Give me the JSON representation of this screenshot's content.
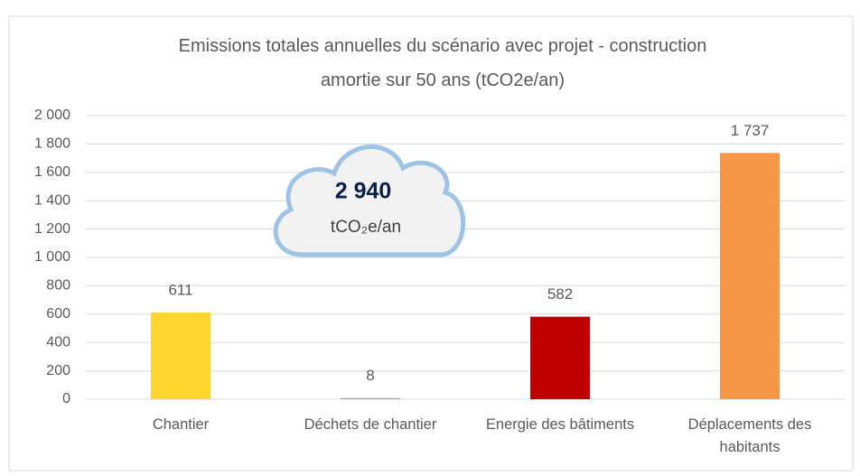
{
  "chart_data": {
    "type": "bar",
    "title": "Emissions totales annuelles du scénario avec projet - construction amortie sur 50 ans (tCO2e/an)",
    "categories": [
      "Chantier",
      "Déchets de chantier",
      "Energie des bâtiments",
      "Déplacements des habitants"
    ],
    "values": [
      611,
      8,
      582,
      1737
    ],
    "value_labels": [
      "611",
      "8",
      "582",
      "1 737"
    ],
    "colors": [
      "#FFD62F",
      "#A5A5A5",
      "#C00000",
      "#F79646"
    ],
    "ylim": [
      0,
      2000
    ],
    "yticks": [
      0,
      200,
      400,
      600,
      800,
      {
        "value": 1000,
        "label": "1 000"
      },
      {
        "value": 1200,
        "label": "1 200"
      },
      {
        "value": 1400,
        "label": "1 400"
      },
      {
        "value": 1600,
        "label": "1 600"
      },
      {
        "value": 1800,
        "label": "1 800"
      },
      {
        "value": 2000,
        "label": "2 000"
      }
    ],
    "grid": true,
    "annotation": {
      "total": "2 940",
      "unit": "tCO₂e/an"
    }
  }
}
